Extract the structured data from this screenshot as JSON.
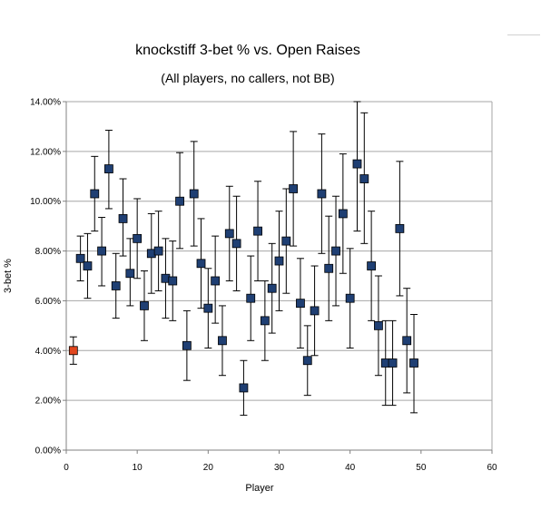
{
  "chart_data": {
    "type": "scatter",
    "title": "knockstiff 3-bet % vs. Open Raises",
    "subtitle": "(All players, no callers, not BB)",
    "xlabel": "Player",
    "ylabel": "3-bet %",
    "xlim": [
      0,
      60
    ],
    "ylim": [
      0,
      14
    ],
    "x_ticks": [
      "0",
      "10",
      "20",
      "30",
      "40",
      "50",
      "60"
    ],
    "y_ticks": [
      "0.00%",
      "2.00%",
      "4.00%",
      "6.00%",
      "8.00%",
      "10.00%",
      "12.00%",
      "14.00%"
    ],
    "grid": "horizontal",
    "legend": "none",
    "colors": {
      "points": "#1f3f73",
      "highlight": "#e0461e",
      "grid": "#a6a6a6",
      "error_bar": "#000000"
    },
    "highlight_point": {
      "x": 1,
      "y": 4.0,
      "low": 3.45,
      "high": 4.55
    },
    "points": [
      {
        "x": 2,
        "y": 7.7,
        "low": 6.8,
        "high": 8.6
      },
      {
        "x": 3,
        "y": 7.4,
        "low": 6.1,
        "high": 8.7
      },
      {
        "x": 4,
        "y": 10.3,
        "low": 8.8,
        "high": 11.8
      },
      {
        "x": 5,
        "y": 8.0,
        "low": 6.6,
        "high": 9.35
      },
      {
        "x": 6,
        "y": 11.3,
        "low": 9.7,
        "high": 12.85
      },
      {
        "x": 7,
        "y": 6.6,
        "low": 5.3,
        "high": 7.9
      },
      {
        "x": 8,
        "y": 9.3,
        "low": 7.8,
        "high": 10.9
      },
      {
        "x": 9,
        "y": 7.1,
        "low": 5.8,
        "high": 8.5
      },
      {
        "x": 10,
        "y": 8.5,
        "low": 6.9,
        "high": 10.1
      },
      {
        "x": 11,
        "y": 5.8,
        "low": 4.4,
        "high": 7.2
      },
      {
        "x": 12,
        "y": 7.9,
        "low": 6.3,
        "high": 9.5
      },
      {
        "x": 13,
        "y": 8.0,
        "low": 6.4,
        "high": 9.6
      },
      {
        "x": 14,
        "y": 6.9,
        "low": 5.3,
        "high": 8.5
      },
      {
        "x": 15,
        "y": 6.8,
        "low": 5.2,
        "high": 8.4
      },
      {
        "x": 16,
        "y": 10.0,
        "low": 8.1,
        "high": 11.95
      },
      {
        "x": 17,
        "y": 4.2,
        "low": 2.8,
        "high": 5.6
      },
      {
        "x": 18,
        "y": 10.3,
        "low": 8.2,
        "high": 12.4
      },
      {
        "x": 19,
        "y": 7.5,
        "low": 5.7,
        "high": 9.3
      },
      {
        "x": 20,
        "y": 5.7,
        "low": 4.1,
        "high": 7.3
      },
      {
        "x": 21,
        "y": 6.8,
        "low": 5.1,
        "high": 8.6
      },
      {
        "x": 22,
        "y": 4.4,
        "low": 3.0,
        "high": 5.8
      },
      {
        "x": 23,
        "y": 8.7,
        "low": 6.8,
        "high": 10.6
      },
      {
        "x": 24,
        "y": 8.3,
        "low": 6.4,
        "high": 10.2
      },
      {
        "x": 25,
        "y": 2.5,
        "low": 1.4,
        "high": 3.6
      },
      {
        "x": 26,
        "y": 6.1,
        "low": 4.4,
        "high": 7.8
      },
      {
        "x": 27,
        "y": 8.8,
        "low": 6.8,
        "high": 10.8
      },
      {
        "x": 28,
        "y": 5.2,
        "low": 3.6,
        "high": 6.8
      },
      {
        "x": 29,
        "y": 6.5,
        "low": 4.7,
        "high": 8.3
      },
      {
        "x": 30,
        "y": 7.6,
        "low": 5.6,
        "high": 9.6
      },
      {
        "x": 31,
        "y": 8.4,
        "low": 6.3,
        "high": 10.5
      },
      {
        "x": 32,
        "y": 10.5,
        "low": 8.2,
        "high": 12.8
      },
      {
        "x": 33,
        "y": 5.9,
        "low": 4.1,
        "high": 7.7
      },
      {
        "x": 34,
        "y": 3.6,
        "low": 2.2,
        "high": 5.0
      },
      {
        "x": 35,
        "y": 5.6,
        "low": 3.8,
        "high": 7.4
      },
      {
        "x": 36,
        "y": 10.3,
        "low": 7.9,
        "high": 12.7
      },
      {
        "x": 37,
        "y": 7.3,
        "low": 5.2,
        "high": 9.4
      },
      {
        "x": 38,
        "y": 8.0,
        "low": 5.8,
        "high": 10.2
      },
      {
        "x": 39,
        "y": 9.5,
        "low": 7.1,
        "high": 11.9
      },
      {
        "x": 40,
        "y": 6.1,
        "low": 4.1,
        "high": 8.1
      },
      {
        "x": 41,
        "y": 11.5,
        "low": 8.8,
        "high": 14.0
      },
      {
        "x": 42,
        "y": 10.9,
        "low": 8.3,
        "high": 13.55
      },
      {
        "x": 43,
        "y": 7.4,
        "low": 5.2,
        "high": 9.6
      },
      {
        "x": 44,
        "y": 5.0,
        "low": 3.0,
        "high": 7.0
      },
      {
        "x": 45,
        "y": 3.5,
        "low": 1.8,
        "high": 5.2
      },
      {
        "x": 46,
        "y": 3.5,
        "low": 1.8,
        "high": 5.2
      },
      {
        "x": 47,
        "y": 8.9,
        "low": 6.2,
        "high": 11.6
      },
      {
        "x": 48,
        "y": 4.4,
        "low": 2.3,
        "high": 6.5
      },
      {
        "x": 49,
        "y": 3.5,
        "low": 1.5,
        "high": 5.45
      }
    ]
  }
}
